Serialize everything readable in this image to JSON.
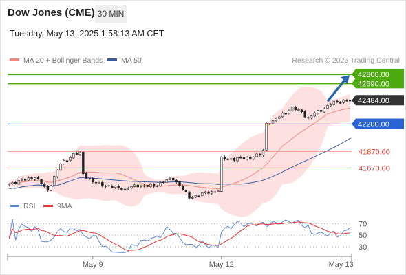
{
  "header": {
    "symbol": "Dow Jones (CME)",
    "timeframe": "30 MIN",
    "timestamp": "Tuesday, May 13, 2025 1:58:13 AM CET"
  },
  "colors": {
    "ma20": "#f08a80",
    "ma50": "#3b5b9a",
    "bollinger_fill": "#fddcdc",
    "resistance_green": "#4caa0f",
    "support_blue": "#2a63d4",
    "minor_level": "#f08a80",
    "last_price_box": "#333333",
    "arrow": "#2a64ad",
    "rsi": "#5b86d1",
    "rsi_ma": "#e33030"
  },
  "legend": {
    "ma20_label": "MA 20 + Bollinger Bands",
    "ma50_label": "MA 50",
    "credit": "Research © 2025 Trading Central"
  },
  "chart_data": [
    {
      "type": "candlestick",
      "title": "Dow Jones (CME)",
      "ylim": [
        41350,
        42900
      ],
      "x_tick_labels": [
        "May 9",
        "May 12",
        "May 13"
      ],
      "price_levels": [
        {
          "value": 42800,
          "label": "42800.00",
          "kind": "resistance"
        },
        {
          "value": 42690,
          "label": "42690.00",
          "kind": "resistance"
        },
        {
          "value": 42484,
          "label": "42484.00",
          "kind": "last-price"
        },
        {
          "value": 42200,
          "label": "42200.00",
          "kind": "support"
        },
        {
          "value": 41870,
          "label": "41870.00",
          "kind": "minor"
        },
        {
          "value": 41670,
          "label": "41670.00",
          "kind": "minor"
        }
      ],
      "indicators": [
        "MA 20 + Bollinger Bands",
        "MA 50"
      ],
      "forecast_arrow": {
        "from": 42484,
        "to": 42800
      },
      "close_keypoints": [
        {
          "bar": 0,
          "close": 41480
        },
        {
          "bar": 4,
          "close": 41520
        },
        {
          "bar": 8,
          "close": 41560
        },
        {
          "bar": 12,
          "close": 41400
        },
        {
          "bar": 16,
          "close": 41720
        },
        {
          "bar": 20,
          "close": 41830
        },
        {
          "bar": 22,
          "close": 41850
        },
        {
          "bar": 23,
          "close": 41600
        },
        {
          "bar": 26,
          "close": 41500
        },
        {
          "bar": 32,
          "close": 41440
        },
        {
          "bar": 36,
          "close": 41420
        },
        {
          "bar": 40,
          "close": 41460
        },
        {
          "bar": 45,
          "close": 41450
        },
        {
          "bar": 48,
          "close": 41510
        },
        {
          "bar": 51,
          "close": 41540
        },
        {
          "bar": 53,
          "close": 41460
        },
        {
          "bar": 56,
          "close": 41310
        },
        {
          "bar": 60,
          "close": 41360
        },
        {
          "bar": 65,
          "close": 41400
        },
        {
          "bar": 66,
          "close": 41780
        },
        {
          "bar": 70,
          "close": 41780
        },
        {
          "bar": 74,
          "close": 41790
        },
        {
          "bar": 78,
          "close": 41830
        },
        {
          "bar": 79,
          "close": 41880
        },
        {
          "bar": 80,
          "close": 42210
        },
        {
          "bar": 82,
          "close": 42230
        },
        {
          "bar": 85,
          "close": 42320
        },
        {
          "bar": 88,
          "close": 42390
        },
        {
          "bar": 91,
          "close": 42350
        },
        {
          "bar": 93,
          "close": 42260
        },
        {
          "bar": 95,
          "close": 42330
        },
        {
          "bar": 98,
          "close": 42390
        },
        {
          "bar": 101,
          "close": 42460
        },
        {
          "bar": 104,
          "close": 42480
        },
        {
          "bar": 106,
          "close": 42484
        }
      ]
    },
    {
      "type": "line",
      "title": "RSI",
      "series": [
        {
          "name": "RSI"
        },
        {
          "name": "9MA"
        }
      ],
      "y_ticks": [
        70,
        50,
        30
      ],
      "ylim": [
        18,
        80
      ]
    }
  ]
}
